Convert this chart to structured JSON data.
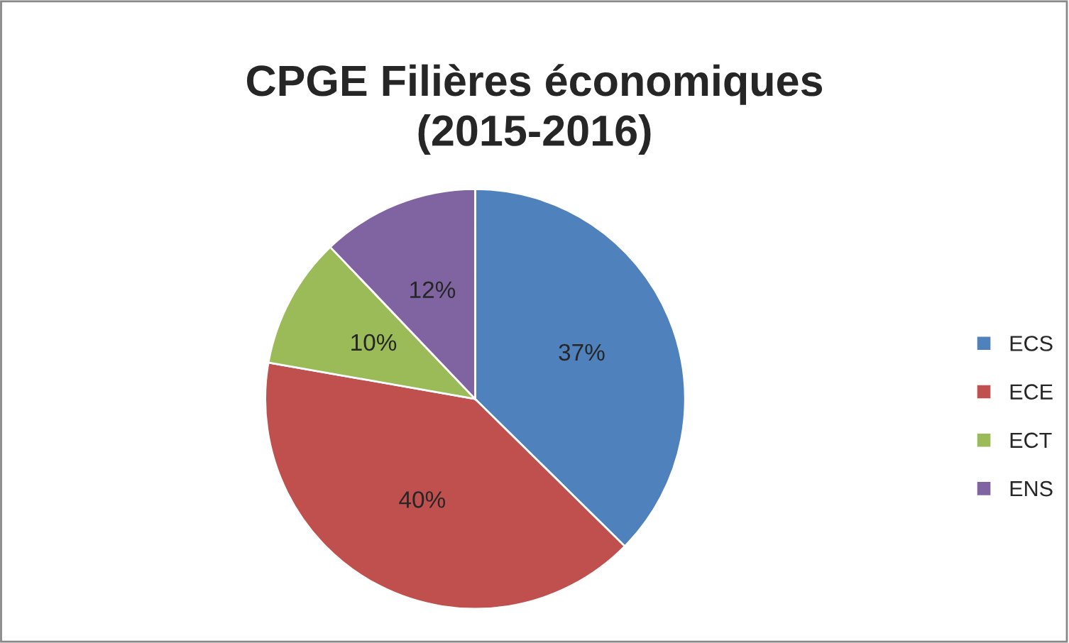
{
  "chart_data": {
    "type": "pie",
    "title": "CPGE Filières économiques\n(2015-2016)",
    "categories": [
      "ECS",
      "ECE",
      "ECT",
      "ENS"
    ],
    "values": [
      37,
      40,
      10,
      12
    ],
    "colors": [
      "#4f81bd",
      "#c0504d",
      "#9bbb59",
      "#8064a2"
    ],
    "value_labels": [
      "37%",
      "40%",
      "10%",
      "12%"
    ],
    "legend": "right"
  }
}
